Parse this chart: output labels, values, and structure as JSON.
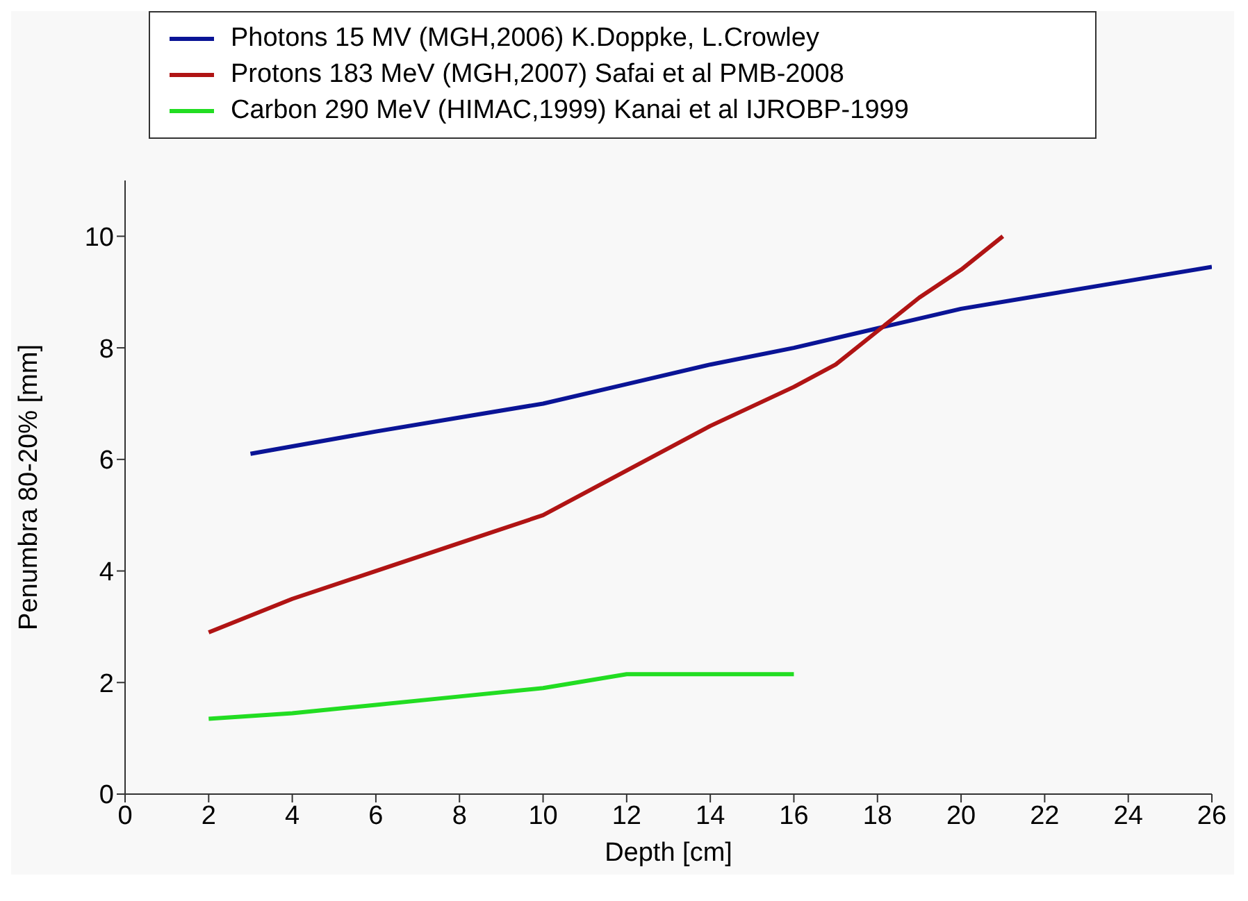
{
  "chart_data": {
    "type": "line",
    "xlabel": "Depth [cm]",
    "ylabel": "Penumbra 80-20% [mm]",
    "xlim": [
      0,
      26
    ],
    "xticks": [
      0,
      2,
      4,
      6,
      8,
      10,
      12,
      14,
      16,
      18,
      20,
      22,
      24,
      26
    ],
    "ylim": [
      0,
      11
    ],
    "yticks": [
      0,
      2,
      4,
      6,
      8,
      10
    ],
    "grid": false,
    "legend": "top",
    "marker": "none",
    "line_style": "solid",
    "series": [
      {
        "name": "Photons 15 MV (MGH,2006) K.Doppke, L.Crowley",
        "color": "#0a1496",
        "x": [
          3,
          6,
          8,
          10,
          12,
          14,
          16,
          18,
          20,
          22,
          24,
          26
        ],
        "values": [
          6.1,
          6.5,
          6.75,
          7.0,
          7.35,
          7.7,
          8.0,
          8.35,
          8.7,
          8.95,
          9.2,
          9.45
        ]
      },
      {
        "name": "Protons 183 MeV (MGH,2007) Safai et al PMB-2008",
        "color": "#b01414",
        "x": [
          2,
          4,
          6,
          8,
          10,
          12,
          14,
          16,
          17,
          18,
          19,
          20,
          21
        ],
        "values": [
          2.9,
          3.5,
          4.0,
          4.5,
          5.0,
          5.8,
          6.6,
          7.3,
          7.7,
          8.3,
          8.9,
          9.4,
          10.0
        ]
      },
      {
        "name": "Carbon 290 MeV (HIMAC,1999) Kanai et al IJROBP-1999",
        "color": "#22dd22",
        "x": [
          2,
          4,
          6,
          8,
          10,
          12,
          14,
          16
        ],
        "values": [
          1.35,
          1.45,
          1.6,
          1.75,
          1.9,
          2.15,
          2.15,
          2.15
        ]
      }
    ]
  }
}
